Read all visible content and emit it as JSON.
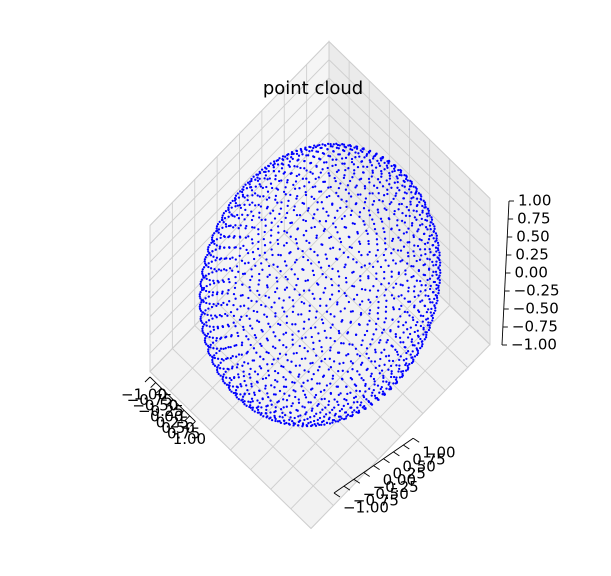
{
  "chart_data": {
    "type": "scatter",
    "title": "point cloud",
    "projection": "3d",
    "marker_color": "#0000ff",
    "grid": true,
    "xlim": [
      -1.0,
      1.0
    ],
    "ylim": [
      -1.0,
      1.0
    ],
    "zlim": [
      -1.0,
      1.0
    ],
    "x_ticks": [
      "−1.00",
      "−0.75",
      "−0.50",
      "−0.25",
      "0.00",
      "0.25",
      "0.50",
      "0.75",
      "1.00"
    ],
    "y_ticks": [
      "−1.00",
      "−0.75",
      "−0.50",
      "−0.25",
      "0.00",
      "0.25",
      "0.50",
      "0.75",
      "1.00"
    ],
    "z_ticks": [
      "−1.00",
      "−0.75",
      "−0.50",
      "−0.25",
      "0.00",
      "0.25",
      "0.50",
      "0.75",
      "1.00"
    ],
    "surface": "unit sphere",
    "radius": 1.0,
    "point_count": 2000
  }
}
